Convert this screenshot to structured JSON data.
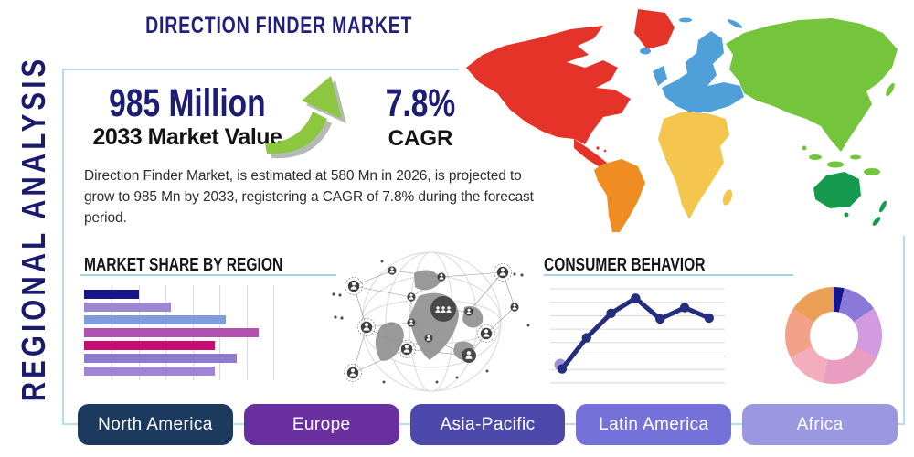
{
  "header": {
    "title": "DIRECTION FINDER MARKET"
  },
  "sidebar": {
    "label": "REGIONAL ANALYSIS"
  },
  "stats": {
    "market_value": "985 Million",
    "market_value_caption": "2033 Market Value",
    "cagr_value": "7.8%",
    "cagr_caption": "CAGR",
    "arrow_icon": "growth-arrow-up-right",
    "arrow_color": "#8dc63f",
    "navy_accent": "#1d1d76"
  },
  "description": "Direction Finder Market, is estimated at 580 Mn in 2026, is projected to grow to 985 Mn by 2033, registering a CAGR of 7.8% during the forecast period.",
  "chart_data": [
    {
      "id": "market-share-by-region",
      "type": "bar",
      "title": "MARKET SHARE BY REGION",
      "orientation": "horizontal",
      "n_bars": 7,
      "labels_visible": false,
      "values": [
        2.0,
        3.2,
        5.2,
        6.4,
        4.8,
        5.6,
        4.8
      ],
      "values_unit": "gridline-units (7 unlabeled gridlines)",
      "xlim": [
        0,
        7.05
      ],
      "grid": true,
      "colors": [
        "#15158c",
        "#9c87d0",
        "#7f9cdd",
        "#b351ae",
        "#c90c74",
        "#8f7bce",
        "#9e86d6"
      ]
    },
    {
      "id": "consumer-behavior",
      "type": "line",
      "title": "CONSUMER BEHAVIOR",
      "x": [
        1,
        2,
        3,
        4,
        5,
        6,
        7
      ],
      "values": [
        15,
        48,
        74,
        90,
        68,
        80,
        69
      ],
      "ylim": [
        0,
        100
      ],
      "grid": true,
      "gridlines": 8,
      "axis_labels_visible": false,
      "line_color": "#252d7e",
      "highlight_first_point_color": "#9d8fd4"
    },
    {
      "id": "regional-share-donut",
      "type": "pie",
      "donut": true,
      "labels_visible": false,
      "values": [
        3.5,
        12,
        17,
        21,
        14,
        17,
        15.5
      ],
      "colors": [
        "#17148f",
        "#8a79d9",
        "#d29ae0",
        "#e99dc1",
        "#f4adbd",
        "#f3a187",
        "#eb9f55"
      ]
    }
  ],
  "regions": [
    {
      "label": "North America",
      "color": "#1c3a5e"
    },
    {
      "label": "Europe",
      "color": "#6a2f9f"
    },
    {
      "label": "Asia-Pacific",
      "color": "#4c49aa"
    },
    {
      "label": "Latin America",
      "color": "#7472d8"
    },
    {
      "label": "Africa",
      "color": "#9c97e1"
    }
  ],
  "map": {
    "icon": "world-map",
    "colors": {
      "north_america": "#e63329",
      "south_america": "#ef8c22",
      "europe": "#4f9fd9",
      "africa": "#f5c64d",
      "asia": "#74c43c",
      "australia": "#169a50"
    }
  },
  "globe": {
    "icon": "connected-globe-network"
  },
  "panel": {
    "border_color": "#b5dcec",
    "underline_color": "#a5d2e4"
  }
}
